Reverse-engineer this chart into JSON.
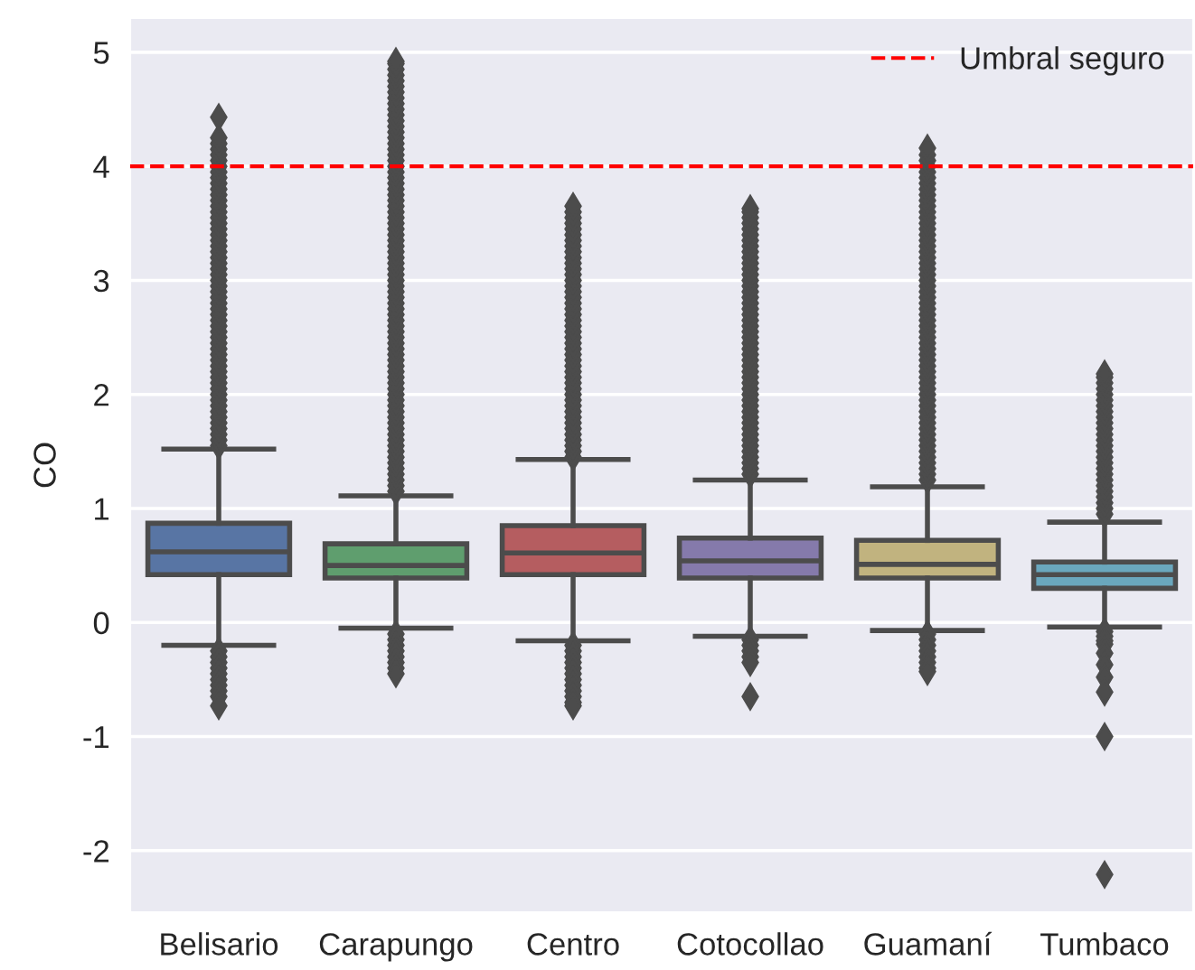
{
  "chart_data": {
    "type": "box",
    "ylabel": "CO",
    "categories": [
      "Belisario",
      "Carapungo",
      "Centro",
      "Cotocollao",
      "Guamaní",
      "Tumbaco"
    ],
    "colors": [
      "#5875a4",
      "#5f9e6e",
      "#b55d60",
      "#857aab",
      "#c1b37f",
      "#6aa7bd"
    ],
    "boxes": [
      {
        "low": -0.2,
        "q1": 0.42,
        "median": 0.62,
        "q3": 0.87,
        "high": 1.52,
        "outliers": [
          1.55,
          1.6,
          1.65,
          1.7,
          1.75,
          1.8,
          1.85,
          1.9,
          1.95,
          2.0,
          2.05,
          2.1,
          2.15,
          2.2,
          2.25,
          2.3,
          2.35,
          2.4,
          2.45,
          2.5,
          2.55,
          2.6,
          2.65,
          2.7,
          2.75,
          2.8,
          2.85,
          2.9,
          2.95,
          3.0,
          3.05,
          3.1,
          3.15,
          3.2,
          3.25,
          3.3,
          3.35,
          3.4,
          3.45,
          3.5,
          3.55,
          3.6,
          3.65,
          3.7,
          3.75,
          3.8,
          3.85,
          3.9,
          3.95,
          4.0,
          4.05,
          4.1,
          4.15,
          4.2,
          4.25,
          4.43,
          -0.25,
          -0.3,
          -0.35,
          -0.4,
          -0.45,
          -0.5,
          -0.55,
          -0.6,
          -0.65,
          -0.73
        ]
      },
      {
        "low": -0.05,
        "q1": 0.39,
        "median": 0.5,
        "q3": 0.69,
        "high": 1.11,
        "outliers": [
          1.15,
          1.2,
          1.25,
          1.3,
          1.35,
          1.4,
          1.45,
          1.5,
          1.55,
          1.6,
          1.65,
          1.7,
          1.75,
          1.8,
          1.85,
          1.9,
          1.95,
          2.0,
          2.05,
          2.1,
          2.15,
          2.2,
          2.25,
          2.3,
          2.35,
          2.4,
          2.45,
          2.5,
          2.55,
          2.6,
          2.65,
          2.7,
          2.75,
          2.8,
          2.85,
          2.9,
          2.95,
          3.0,
          3.05,
          3.1,
          3.15,
          3.2,
          3.25,
          3.3,
          3.35,
          3.4,
          3.45,
          3.5,
          3.55,
          3.6,
          3.65,
          3.7,
          3.75,
          3.8,
          3.85,
          3.9,
          3.95,
          4.0,
          4.05,
          4.1,
          4.15,
          4.2,
          4.25,
          4.3,
          4.35,
          4.4,
          4.45,
          4.5,
          4.55,
          4.6,
          4.65,
          4.7,
          4.75,
          4.8,
          4.85,
          4.9,
          4.92,
          -0.1,
          -0.15,
          -0.2,
          -0.25,
          -0.3,
          -0.35,
          -0.4,
          -0.45
        ]
      },
      {
        "low": -0.16,
        "q1": 0.42,
        "median": 0.61,
        "q3": 0.85,
        "high": 1.43,
        "outliers": [
          1.45,
          1.5,
          1.55,
          1.6,
          1.65,
          1.7,
          1.75,
          1.8,
          1.85,
          1.9,
          1.95,
          2.0,
          2.05,
          2.1,
          2.15,
          2.2,
          2.25,
          2.3,
          2.35,
          2.4,
          2.45,
          2.5,
          2.55,
          2.6,
          2.65,
          2.7,
          2.75,
          2.8,
          2.85,
          2.9,
          2.95,
          3.0,
          3.05,
          3.1,
          3.15,
          3.2,
          3.25,
          3.3,
          3.35,
          3.4,
          3.45,
          3.5,
          3.55,
          3.6,
          3.65,
          -0.2,
          -0.25,
          -0.3,
          -0.35,
          -0.4,
          -0.45,
          -0.5,
          -0.55,
          -0.6,
          -0.65,
          -0.7,
          -0.73
        ]
      },
      {
        "low": -0.12,
        "q1": 0.39,
        "median": 0.54,
        "q3": 0.74,
        "high": 1.25,
        "outliers": [
          1.3,
          1.35,
          1.4,
          1.45,
          1.5,
          1.55,
          1.6,
          1.65,
          1.7,
          1.75,
          1.8,
          1.85,
          1.9,
          1.95,
          2.0,
          2.05,
          2.1,
          2.15,
          2.2,
          2.25,
          2.3,
          2.35,
          2.4,
          2.45,
          2.5,
          2.55,
          2.6,
          2.65,
          2.7,
          2.75,
          2.8,
          2.85,
          2.9,
          2.95,
          3.0,
          3.05,
          3.1,
          3.15,
          3.2,
          3.25,
          3.3,
          3.35,
          3.4,
          3.45,
          3.5,
          3.55,
          3.6,
          3.63,
          -0.15,
          -0.2,
          -0.25,
          -0.3,
          -0.35,
          -0.65
        ]
      },
      {
        "low": -0.07,
        "q1": 0.39,
        "median": 0.51,
        "q3": 0.72,
        "high": 1.19,
        "outliers": [
          1.25,
          1.3,
          1.35,
          1.4,
          1.45,
          1.5,
          1.55,
          1.6,
          1.65,
          1.7,
          1.75,
          1.8,
          1.85,
          1.9,
          1.95,
          2.0,
          2.05,
          2.1,
          2.15,
          2.2,
          2.25,
          2.3,
          2.35,
          2.4,
          2.45,
          2.5,
          2.55,
          2.6,
          2.65,
          2.7,
          2.75,
          2.8,
          2.85,
          2.9,
          2.95,
          3.0,
          3.05,
          3.1,
          3.15,
          3.2,
          3.25,
          3.3,
          3.35,
          3.4,
          3.45,
          3.5,
          3.55,
          3.6,
          3.65,
          3.7,
          3.75,
          3.8,
          3.85,
          3.9,
          3.95,
          4.0,
          4.05,
          4.1,
          4.16,
          -0.1,
          -0.15,
          -0.2,
          -0.25,
          -0.3,
          -0.35,
          -0.4,
          -0.43
        ]
      },
      {
        "low": -0.04,
        "q1": 0.3,
        "median": 0.42,
        "q3": 0.53,
        "high": 0.88,
        "outliers": [
          0.95,
          1.0,
          1.05,
          1.1,
          1.15,
          1.2,
          1.25,
          1.3,
          1.35,
          1.4,
          1.45,
          1.5,
          1.55,
          1.6,
          1.65,
          1.7,
          1.75,
          1.8,
          1.85,
          1.9,
          1.95,
          2.0,
          2.05,
          2.1,
          2.15,
          2.18,
          -0.08,
          -0.12,
          -0.16,
          -0.19,
          -0.27,
          -0.37,
          -0.48,
          -0.61,
          -1.0,
          -2.21
        ]
      }
    ],
    "ylim": [
      -2.54,
      5.3
    ],
    "yticks": [
      -2,
      -1,
      0,
      1,
      2,
      3,
      4,
      5
    ],
    "grid": "y",
    "legend": "top right",
    "marker": "diamond",
    "ref_lines": [
      {
        "axis": "y",
        "value": 4,
        "label": "Umbral seguro",
        "color": "#ff0000",
        "line_style": "dashed"
      }
    ]
  }
}
